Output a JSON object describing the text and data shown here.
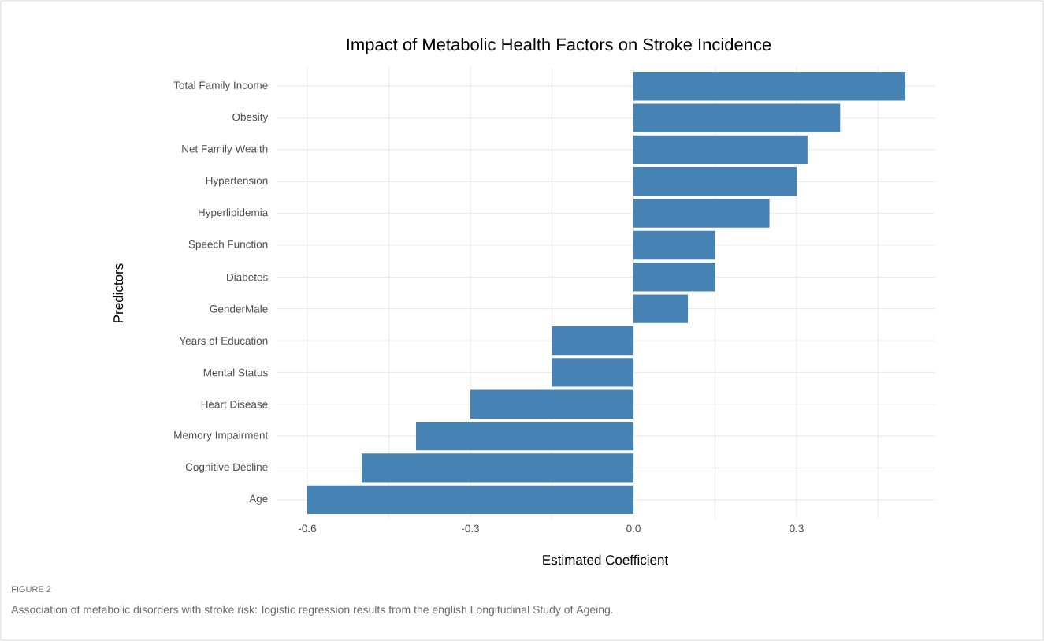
{
  "chart_data": {
    "type": "bar",
    "orientation": "horizontal",
    "title": "Impact of Metabolic Health Factors on Stroke Incidence",
    "xlabel": "Estimated Coefficient",
    "ylabel": "Predictors",
    "categories": [
      "Total Family Income",
      "Obesity",
      "Net Family Wealth",
      "Hypertension",
      "Hyperlipidemia",
      "Speech Function",
      "Diabetes",
      "GenderMale",
      "Years of Education",
      "Mental Status",
      "Heart Disease",
      "Memory Impairment",
      "Cognitive Decline",
      "Age"
    ],
    "values": [
      0.5,
      0.38,
      0.32,
      0.3,
      0.25,
      0.15,
      0.15,
      0.1,
      -0.15,
      -0.15,
      -0.3,
      -0.4,
      -0.5,
      -0.6
    ],
    "color": "#4682b4",
    "xlim": [
      -0.655,
      0.555
    ],
    "xticks": [
      -0.6,
      {
        "value": -0.45,
        "label": null
      },
      -0.3,
      {
        "value": -0.15,
        "label": null
      },
      {
        "value": 0,
        "label": "0.0"
      },
      {
        "value": 0.15,
        "label": null
      },
      0.3,
      {
        "value": 0.45,
        "label": null
      }
    ],
    "grid": true,
    "annotations": [
      "FIGURE 2",
      "Association of metabolic disorders with stroke risk: logistic regression results from the english Longitudinal Study of Ageing."
    ]
  }
}
